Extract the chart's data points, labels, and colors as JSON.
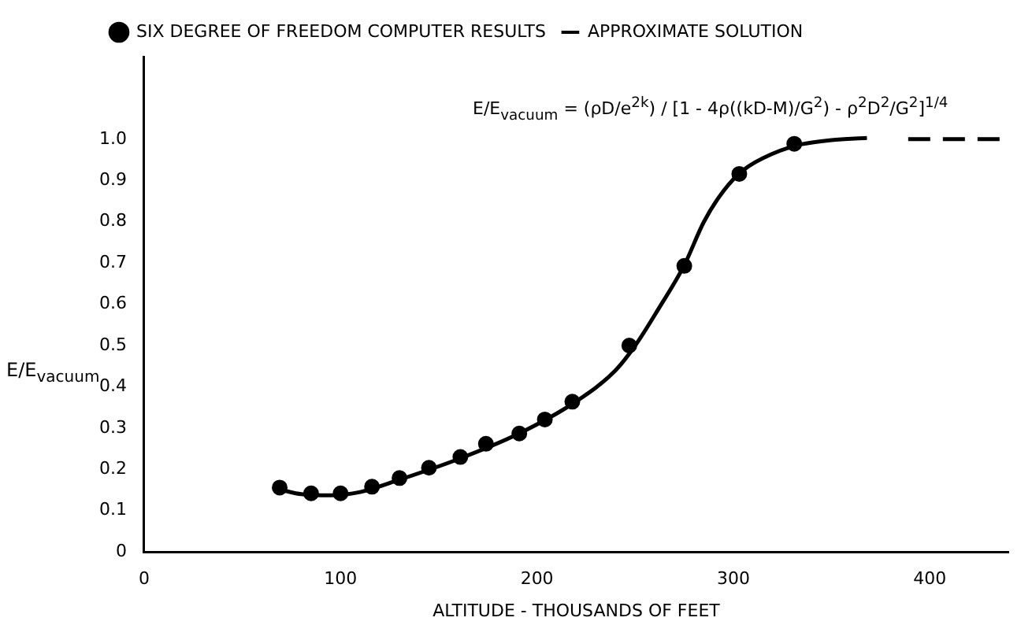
{
  "chart_data": {
    "type": "scatter",
    "xlabel": "ALTITUDE - THOUSANDS OF FEET",
    "ylabel": "E/E$_{vacuum}$",
    "annotations": [
      "E/E$_{vacuum}$ = (ρD/e$^{2k}$) / [1 - 4ρ((kD-M)/G$^{2}$) - ρ$^{2}$D$^{2}$/G$^{2}$]$^{1/4}$"
    ],
    "series": [
      {
        "name": "SIX DEGREE OF FREEDOM COMPUTER RESULTS",
        "type": "scatter",
        "color": "#000000",
        "marker": "circle",
        "x": [
          69,
          85,
          100,
          116,
          130,
          145,
          161,
          174,
          191,
          204,
          218,
          247,
          275,
          303,
          331
        ],
        "values": [
          0.156,
          0.142,
          0.142,
          0.158,
          0.179,
          0.204,
          0.23,
          0.262,
          0.287,
          0.321,
          0.364,
          0.5,
          0.693,
          0.916,
          0.989
        ]
      },
      {
        "name": "APPROXIMATE SOLUTION",
        "type": "line",
        "color": "#000000",
        "marker": "none",
        "line_style": "solid",
        "x": [
          70,
          80,
          95,
          110,
          130,
          160,
          190,
          220,
          240,
          250,
          262,
          275,
          285,
          295,
          305,
          320,
          335,
          350,
          368
        ],
        "values": [
          0.15,
          0.14,
          0.137,
          0.145,
          0.175,
          0.225,
          0.285,
          0.365,
          0.44,
          0.5,
          0.59,
          0.695,
          0.8,
          0.875,
          0.925,
          0.965,
          0.988,
          0.998,
          1.003
        ]
      },
      {
        "type": "line",
        "color": "#000000",
        "marker": "none",
        "line_style": "dashed",
        "x": [
          389,
          440
        ],
        "values": [
          1,
          1
        ]
      }
    ],
    "xlim": [
      0,
      440
    ],
    "xticks": [
      0,
      100,
      200,
      300,
      400
    ],
    "ylim": [
      0,
      1.2
    ],
    "yticks": [
      0,
      {
        "value": 0.1,
        "label": "0.1"
      },
      {
        "value": 0.2,
        "label": "0.2"
      },
      {
        "value": 0.3,
        "label": "0.3"
      },
      {
        "value": 0.4,
        "label": "0.4"
      },
      {
        "value": 0.5,
        "label": "0.5"
      },
      {
        "value": 0.6,
        "label": "0.6"
      },
      {
        "value": 0.7,
        "label": "0.7"
      },
      {
        "value": 0.8,
        "label": "0.8"
      },
      {
        "value": 0.9,
        "label": "0.9"
      },
      {
        "value": 1,
        "label": "1.0"
      }
    ],
    "grid": false,
    "legend": "top left"
  }
}
